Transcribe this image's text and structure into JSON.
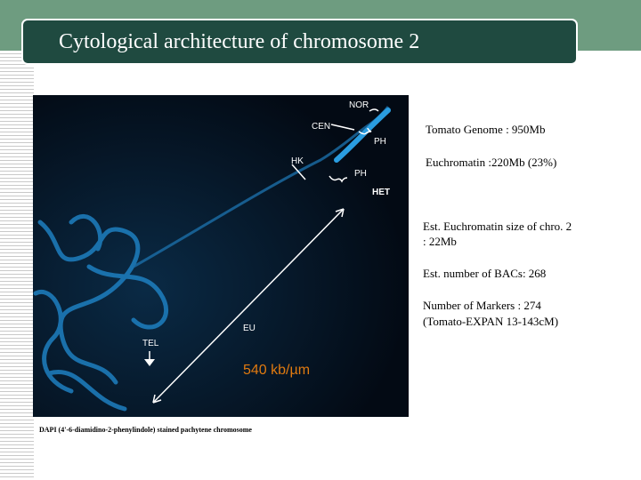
{
  "header": {
    "title": "Cytological architecture of chromosome 2"
  },
  "image": {
    "labels": {
      "nor": "NOR",
      "cen": "CEN",
      "ph_top": "PH",
      "hk": "HK",
      "ph_bottom": "PH",
      "het": "HET",
      "eu": "EU",
      "tel": "TEL"
    },
    "scale": "540 kb/µm",
    "caption": "DAPI (4'-6-diamidino-2-phenylindole) stained pachytene chromosome"
  },
  "notes": [
    {
      "lines": [
        "Tomato Genome : 950Mb"
      ]
    },
    {
      "lines": [
        "Euchromatin :220Mb (23%)"
      ]
    },
    {
      "lines": [
        "Est. Euchromatin size of chro. 2",
        ": 22Mb"
      ]
    },
    {
      "lines": [
        "Est. number of BACs: 268"
      ]
    },
    {
      "lines": [
        "Number of Markers : 274",
        "(Tomato-EXPAN 13-143cM)"
      ]
    }
  ]
}
